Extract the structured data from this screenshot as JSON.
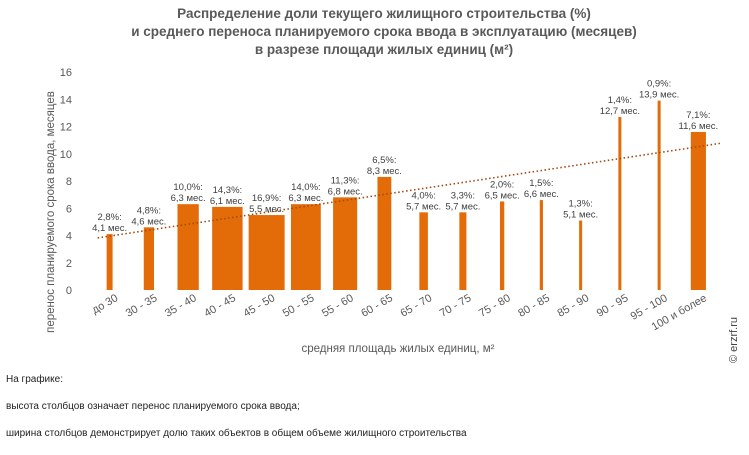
{
  "chart_data": {
    "type": "bar",
    "title_lines": [
      "Распределение доли текущего жилищного строительства (%)",
      "и среднего переноса планируемого срока ввода в эксплуатацию (месяцев)",
      "в разрезе площади жилых единиц (м²)"
    ],
    "xlabel": "средняя площадь жилых единиц, м²",
    "ylabel": "перенос планируемого срока ввода, месяцев",
    "ylim": [
      0,
      16
    ],
    "yticks": [
      "0",
      "2",
      "4",
      "6",
      "8",
      "10",
      "12",
      "14",
      "16"
    ],
    "grid": false,
    "trendline": "dotted linear",
    "colors": {
      "bar": "#E36C09",
      "trend": "#A04A10"
    },
    "categories": [
      "до 30",
      "30 - 35",
      "35 - 40",
      "40 - 45",
      "45 - 50",
      "50 - 55",
      "55 - 60",
      "60 - 65",
      "65 - 70",
      "70 - 75",
      "75 - 80",
      "80 - 85",
      "85 - 90",
      "90 - 95",
      "95 - 100",
      "100 и более"
    ],
    "values": [
      4.1,
      4.6,
      6.3,
      6.1,
      5.5,
      6.3,
      6.8,
      8.3,
      5.7,
      5.7,
      6.5,
      6.6,
      5.1,
      12.7,
      13.9,
      11.6
    ],
    "shares": [
      2.8,
      4.8,
      10.0,
      14.3,
      16.9,
      14.0,
      11.3,
      6.5,
      4.0,
      3.3,
      2.0,
      1.5,
      1.3,
      1.4,
      0.9,
      7.1
    ],
    "labels_share": [
      "2,8%:",
      "4,8%:",
      "10,0%:",
      "14,3%:",
      "16,9%:",
      "14,0%:",
      "11,3%:",
      "6,5%:",
      "4,0%:",
      "3,3%:",
      "2,0%:",
      "1,5%:",
      "1,3%:",
      "1,4%:",
      "0,9%:",
      "7,1%:"
    ],
    "labels_value": [
      "4,1 мес.",
      "4,6 мес.",
      "6,3 мес.",
      "6,1 мес.",
      "5,5 мес.",
      "6,3 мес.",
      "6,8 мес.",
      "8,3 мес.",
      "5,7 мес.",
      "5,7 мес.",
      "6,5 мес.",
      "6,6 мес.",
      "5,1 мес.",
      "12,7 мес.",
      "13,9 мес.",
      "11,6 мес."
    ]
  },
  "watermark": "© erzrf.ru",
  "notes": [
    "На графике:",
    "высота столбцов означает перенос планируемого срока ввода;",
    "ширина столбцов демонстрирует долю таких объектов в общем объеме жилищного строительства"
  ]
}
